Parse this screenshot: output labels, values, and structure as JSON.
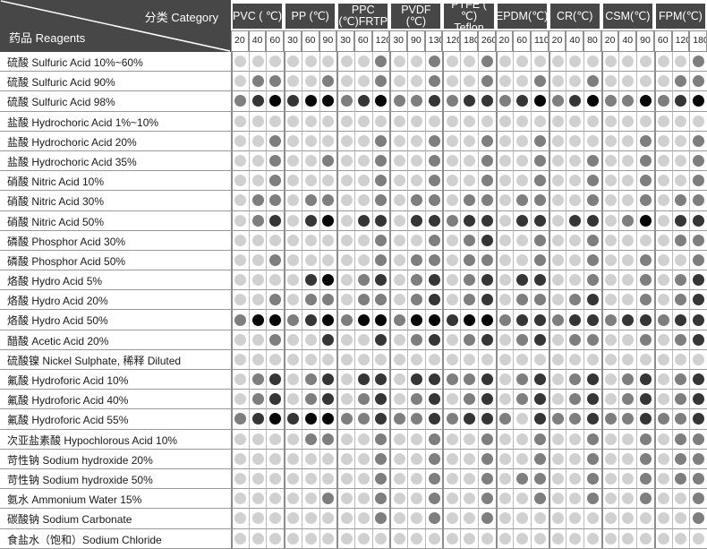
{
  "header": {
    "category_label": "分类 Category",
    "reagents_label": "药品 Reagents",
    "materials": [
      {
        "name": "PVC ( ℃)",
        "temps": [
          "20",
          "40",
          "60"
        ]
      },
      {
        "name": "PP (℃)",
        "temps": [
          "30",
          "60",
          "90"
        ]
      },
      {
        "name": "PPC\n(℃)FRTP",
        "temps": [
          "30",
          "60",
          "120"
        ]
      },
      {
        "name": "PVDF (℃)",
        "temps": [
          "30",
          "90",
          "130"
        ]
      },
      {
        "name": "PTFE ( ℃)\nTeflon",
        "temps": [
          "120",
          "180",
          "260"
        ]
      },
      {
        "name": "EPDM(℃)",
        "temps": [
          "20",
          "60",
          "110"
        ]
      },
      {
        "name": "CR(℃)",
        "temps": [
          "20",
          "40",
          "80"
        ]
      },
      {
        "name": "CSM(℃)",
        "temps": [
          "20",
          "40",
          "90"
        ]
      },
      {
        "name": "FPM(℃)",
        "temps": [
          "60",
          "120",
          "180"
        ]
      }
    ]
  },
  "rating_colors": {
    "0": "#d0d0d0",
    "1": "#7e7e7e",
    "2": "#353535",
    "3": "#060606"
  },
  "rows": [
    {
      "reagent": "硫酸 Sulfuric Acid 10%~60%",
      "ratings": "000000001001001000000000001"
    },
    {
      "reagent": "硫酸 Sulfuric Acid 90%",
      "ratings": "011001001001001001001000011"
    },
    {
      "reagent": "硫酸 Sulfuric Acid 98%",
      "ratings": "123233123112122123123113123"
    },
    {
      "reagent": "盐酸 Hydrochoric Acid 1%~10%",
      "ratings": "000000000000000000000000000"
    },
    {
      "reagent": "盐酸 Hydrochoric Acid 20%",
      "ratings": "001000001001001001000001001"
    },
    {
      "reagent": "盐酸 Hydrochoric Acid 35%",
      "ratings": "001001001001001001001001001"
    },
    {
      "reagent": "硝酸 Nitric Acid 10%",
      "ratings": "001000001001001001001001001"
    },
    {
      "reagent": "硝酸 Nitric Acid 30%",
      "ratings": "011011001011011011001001011"
    },
    {
      "reagent": "硝酸 Nitric Acid 50%",
      "ratings": "012023022022122022022013022"
    },
    {
      "reagent": "磷酸 Phosphor Acid 30%",
      "ratings": "000000001001012001001000011"
    },
    {
      "reagent": "磷酸 Phosphor Acid 50%",
      "ratings": "001000001011011001001001001"
    },
    {
      "reagent": "烙酸 Hydro Acid 5%",
      "ratings": "000023012012012022001001012"
    },
    {
      "reagent": "烙酸 Hydro Acid 20%",
      "ratings": "001011011012012011012001012"
    },
    {
      "reagent": "烙酸 Hydro Acid 50%",
      "ratings": "133123133133233122122122122"
    },
    {
      "reagent": "醋酸 Acetic Acid 20%",
      "ratings": "001002002012012012011001012"
    },
    {
      "reagent": "硫酸镍 Nickel Sulphate, 稀释 Diluted",
      "ratings": "000000000000000000000000000"
    },
    {
      "reagent": "氟酸 Hydroforic Acid 10%",
      "ratings": "012012022022112012012012012"
    },
    {
      "reagent": "氟酸 Hydroforic Acid 40%",
      "ratings": "012012012012012012012012012"
    },
    {
      "reagent": "氟酸 Hydroforic Acid 55%",
      "ratings": "123233112112122102112112112"
    },
    {
      "reagent": "次亚盐素酸 Hypochlorous Acid 10%",
      "ratings": "000011001001001001001001011"
    },
    {
      "reagent": "苛性钠 Sodium hydroxide 20%",
      "ratings": "000000001001001001001001011"
    },
    {
      "reagent": "苛性钠 Sodium hydroxide 50%",
      "ratings": "000000001001001011001001011"
    },
    {
      "reagent": "氨水 Ammonium Water 15%",
      "ratings": "000001001001001001001001001"
    },
    {
      "reagent": "碳酸钠 Sodium Carbonate",
      "ratings": "000000001001001000000000001"
    },
    {
      "reagent": "食盐水（饱和）Sodium Chloride",
      "ratings": "000000000000000000000000000"
    }
  ]
}
